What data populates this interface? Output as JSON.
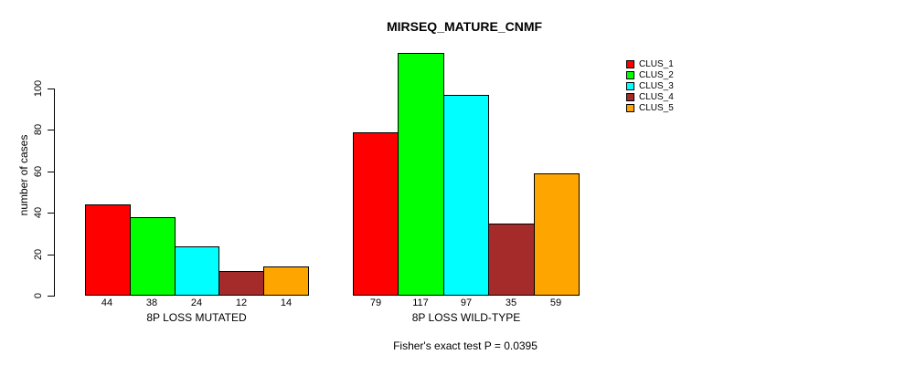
{
  "chart_data": {
    "type": "bar",
    "title": "MIRSEQ_MATURE_CNMF",
    "categories": [
      "8P LOSS MUTATED",
      "8P LOSS WILD-TYPE"
    ],
    "series": [
      {
        "name": "CLUS_1",
        "color": "#FF0000",
        "values": [
          44,
          79
        ]
      },
      {
        "name": "CLUS_2",
        "color": "#00FF00",
        "values": [
          38,
          117
        ]
      },
      {
        "name": "CLUS_3",
        "color": "#00FFFF",
        "values": [
          24,
          97
        ]
      },
      {
        "name": "CLUS_4",
        "color": "#A52A2A",
        "values": [
          12,
          35
        ]
      },
      {
        "name": "CLUS_5",
        "color": "#FFA500",
        "values": [
          14,
          59
        ]
      }
    ],
    "xlabel": "",
    "ylabel": "number of cases",
    "ylim": [
      0,
      117
    ],
    "yticks": [
      0,
      20,
      40,
      60,
      80,
      100
    ],
    "bar_value_labels": [
      [
        44,
        38,
        24,
        12,
        14
      ],
      [
        79,
        117,
        97,
        35,
        59
      ]
    ],
    "grid": false,
    "legend_position": "top-right",
    "annotation": "Fisher's exact test P = 0.0395"
  }
}
